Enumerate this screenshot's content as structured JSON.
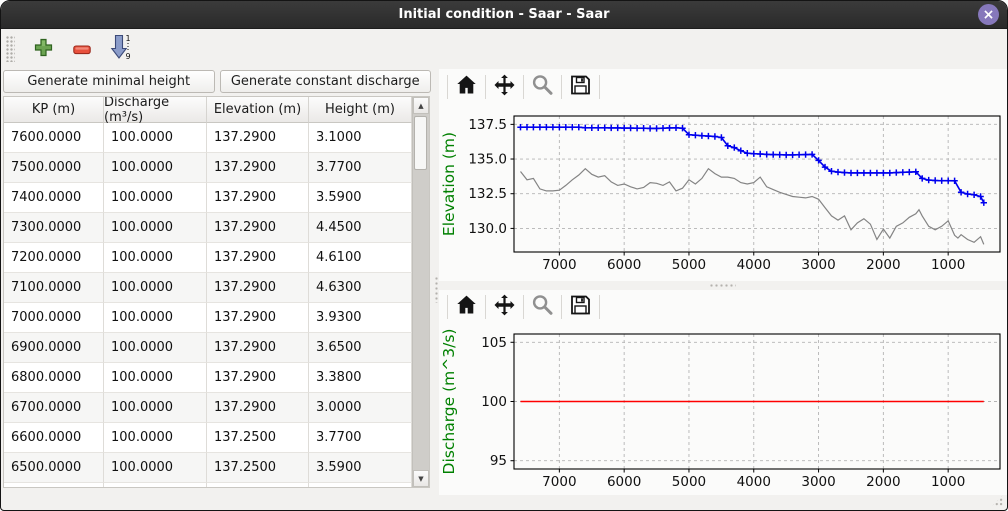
{
  "window": {
    "title": "Initial condition - Saar - Saar",
    "close_glyph": "×"
  },
  "toolbar": {
    "add_icon": "plus-icon",
    "remove_icon": "minus-icon",
    "sort_icon": "sort-ascending-icon",
    "sort_top": "1",
    "sort_bottom": "9"
  },
  "buttons": {
    "minimal": "Generate minimal height",
    "constant": "Generate constant discharge"
  },
  "table": {
    "columns": [
      "KP (m)",
      "Discharge (m³/s)",
      "Elevation (m)",
      "Height (m)"
    ],
    "rows": [
      [
        "7600.0000",
        "100.0000",
        "137.2900",
        "3.1000"
      ],
      [
        "7500.0000",
        "100.0000",
        "137.2900",
        "3.7700"
      ],
      [
        "7400.0000",
        "100.0000",
        "137.2900",
        "3.5900"
      ],
      [
        "7300.0000",
        "100.0000",
        "137.2900",
        "4.4500"
      ],
      [
        "7200.0000",
        "100.0000",
        "137.2900",
        "4.6100"
      ],
      [
        "7100.0000",
        "100.0000",
        "137.2900",
        "4.6300"
      ],
      [
        "7000.0000",
        "100.0000",
        "137.2900",
        "3.9300"
      ],
      [
        "6900.0000",
        "100.0000",
        "137.2900",
        "3.6500"
      ],
      [
        "6800.0000",
        "100.0000",
        "137.2900",
        "3.3800"
      ],
      [
        "6700.0000",
        "100.0000",
        "137.2900",
        "3.0000"
      ],
      [
        "6600.0000",
        "100.0000",
        "137.2500",
        "3.7700"
      ],
      [
        "6500.0000",
        "100.0000",
        "137.2500",
        "3.5900"
      ]
    ],
    "scroll_up_glyph": "▲",
    "scroll_down_glyph": "▼"
  },
  "mpl_toolbar_buttons": [
    "home",
    "pan",
    "zoom",
    "save"
  ],
  "chart_data": [
    {
      "type": "line",
      "title": "",
      "xlabel": "",
      "ylabel": "Elevation (m)",
      "ylabel_color": "#008000",
      "x_reversed": true,
      "xlim": [
        7700,
        200
      ],
      "ylim": [
        128.3,
        138.1
      ],
      "xticks": [
        7000,
        6000,
        5000,
        4000,
        3000,
        2000,
        1000
      ],
      "xtick_labels": [
        "7000",
        "6000",
        "5000",
        "4000",
        "3000",
        "2000",
        "1000"
      ],
      "yticks": [
        130.0,
        132.5,
        135.0,
        137.5
      ],
      "ytick_labels": [
        "130.0",
        "132.5",
        "135.0",
        "137.5"
      ],
      "grid": true,
      "series": [
        {
          "name": "bed-elevation",
          "color": "#848484",
          "marker": null,
          "width": 1.2,
          "x": [
            7600,
            7500,
            7400,
            7300,
            7200,
            7100,
            7000,
            6900,
            6800,
            6700,
            6600,
            6500,
            6400,
            6300,
            6200,
            6100,
            6000,
            5900,
            5800,
            5700,
            5600,
            5500,
            5400,
            5300,
            5200,
            5100,
            5000,
            4900,
            4800,
            4700,
            4600,
            4500,
            4400,
            4300,
            4200,
            4100,
            4000,
            3900,
            3800,
            3700,
            3600,
            3500,
            3400,
            3300,
            3200,
            3100,
            3000,
            2900,
            2800,
            2700,
            2600,
            2500,
            2400,
            2300,
            2200,
            2100,
            2000,
            1900,
            1800,
            1700,
            1600,
            1500,
            1450,
            1400,
            1300,
            1200,
            1100,
            1000,
            900,
            850,
            800,
            700,
            600,
            500,
            450
          ],
          "y": [
            134.1,
            133.5,
            133.6,
            132.85,
            132.7,
            132.7,
            132.75,
            133.1,
            133.5,
            133.85,
            134.3,
            133.9,
            133.7,
            133.8,
            133.35,
            133.1,
            133.2,
            133.0,
            132.85,
            132.95,
            133.3,
            133.25,
            133.1,
            133.35,
            132.7,
            132.9,
            133.5,
            133.2,
            133.6,
            134.3,
            133.95,
            133.7,
            133.7,
            133.6,
            133.3,
            133.2,
            133.3,
            133.7,
            133.0,
            132.8,
            132.6,
            132.45,
            132.3,
            132.25,
            132.2,
            132.3,
            132.1,
            131.5,
            130.9,
            130.6,
            130.9,
            129.9,
            130.4,
            130.7,
            130.3,
            129.2,
            129.95,
            129.3,
            130.15,
            130.4,
            130.8,
            131.05,
            131.35,
            130.9,
            130.15,
            129.9,
            130.15,
            130.55,
            129.5,
            129.3,
            129.55,
            129.2,
            129.0,
            129.4,
            128.85
          ]
        },
        {
          "name": "initial-water-elevation",
          "color": "#0000ee",
          "marker": "+",
          "width": 1.6,
          "x": [
            7600,
            7500,
            7400,
            7300,
            7200,
            7100,
            7000,
            6900,
            6800,
            6700,
            6600,
            6500,
            6400,
            6300,
            6200,
            6100,
            6000,
            5900,
            5800,
            5700,
            5600,
            5500,
            5400,
            5300,
            5200,
            5100,
            5000,
            4900,
            4800,
            4700,
            4600,
            4500,
            4400,
            4300,
            4200,
            4100,
            4000,
            3900,
            3800,
            3700,
            3600,
            3500,
            3400,
            3300,
            3200,
            3100,
            3000,
            2900,
            2800,
            2700,
            2600,
            2500,
            2400,
            2300,
            2200,
            2100,
            2000,
            1900,
            1800,
            1700,
            1600,
            1500,
            1400,
            1300,
            1200,
            1100,
            1000,
            900,
            800,
            700,
            600,
            500,
            450
          ],
          "y": [
            137.29,
            137.29,
            137.29,
            137.29,
            137.29,
            137.29,
            137.29,
            137.29,
            137.29,
            137.29,
            137.25,
            137.25,
            137.25,
            137.25,
            137.24,
            137.24,
            137.23,
            137.23,
            137.22,
            137.22,
            137.21,
            137.21,
            137.22,
            137.24,
            137.25,
            137.22,
            136.75,
            136.72,
            136.68,
            136.65,
            136.62,
            136.55,
            135.95,
            135.82,
            135.6,
            135.42,
            135.38,
            135.36,
            135.33,
            135.32,
            135.31,
            135.3,
            135.3,
            135.31,
            135.32,
            135.33,
            134.9,
            134.42,
            134.12,
            134.06,
            134.02,
            134.0,
            134.0,
            134.0,
            134.0,
            134.0,
            134.0,
            134.0,
            134.02,
            134.04,
            134.06,
            134.08,
            133.6,
            133.48,
            133.45,
            133.44,
            133.44,
            133.43,
            132.6,
            132.48,
            132.42,
            132.3,
            131.85
          ]
        }
      ]
    },
    {
      "type": "line",
      "title": "",
      "xlabel": "",
      "ylabel": "Discharge (m^3/s)",
      "ylabel_color": "#008000",
      "x_reversed": true,
      "xlim": [
        7700,
        200
      ],
      "ylim": [
        94.3,
        105.7
      ],
      "xticks": [
        7000,
        6000,
        5000,
        4000,
        3000,
        2000,
        1000
      ],
      "xtick_labels": [
        "7000",
        "6000",
        "5000",
        "4000",
        "3000",
        "2000",
        "1000"
      ],
      "yticks": [
        95,
        100,
        105
      ],
      "ytick_labels": [
        "95",
        "100",
        "105"
      ],
      "grid": true,
      "series": [
        {
          "name": "constant-discharge",
          "color": "#ff0000",
          "marker": null,
          "width": 1.5,
          "x": [
            7600,
            450
          ],
          "y": [
            100,
            100
          ]
        }
      ]
    }
  ]
}
